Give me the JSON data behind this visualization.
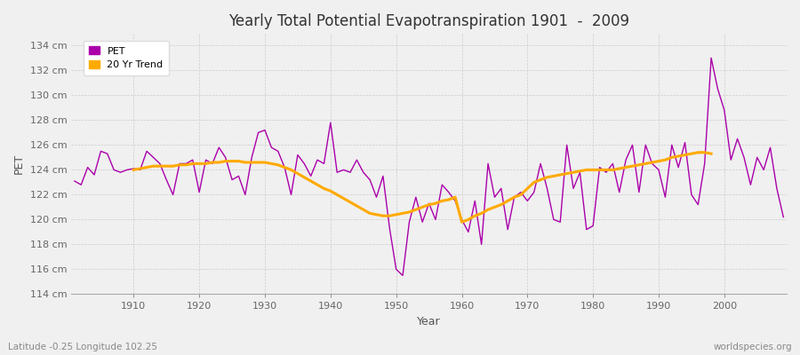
{
  "title": "Yearly Total Potential Evapotranspiration 1901  -  2009",
  "xlabel": "Year",
  "ylabel": "PET",
  "footnote_left": "Latitude -0.25 Longitude 102.25",
  "footnote_right": "worldspecies.org",
  "ylim": [
    114,
    135
  ],
  "yticks": [
    114,
    116,
    118,
    120,
    122,
    124,
    126,
    128,
    130,
    132,
    134
  ],
  "ytick_labels": [
    "114 cm",
    "116 cm",
    "118 cm",
    "120 cm",
    "122 cm",
    "124 cm",
    "126 cm",
    "128 cm",
    "130 cm",
    "132 cm",
    "134 cm"
  ],
  "xlim": [
    1901,
    2009
  ],
  "xticks": [
    1910,
    1920,
    1930,
    1940,
    1950,
    1960,
    1970,
    1980,
    1990,
    2000
  ],
  "pet_color": "#aa00aa",
  "trend_color": "#ffaa00",
  "fig_bg_color": "#f0f0f0",
  "plot_bg_color": "#f0f0f0",
  "legend_labels": [
    "PET",
    "20 Yr Trend"
  ],
  "years": [
    1901,
    1902,
    1903,
    1904,
    1905,
    1906,
    1907,
    1908,
    1909,
    1910,
    1911,
    1912,
    1913,
    1914,
    1915,
    1916,
    1917,
    1918,
    1919,
    1920,
    1921,
    1922,
    1923,
    1924,
    1925,
    1926,
    1927,
    1928,
    1929,
    1930,
    1931,
    1932,
    1933,
    1934,
    1935,
    1936,
    1937,
    1938,
    1939,
    1940,
    1941,
    1942,
    1943,
    1944,
    1945,
    1946,
    1947,
    1948,
    1949,
    1950,
    1951,
    1952,
    1953,
    1954,
    1955,
    1956,
    1957,
    1958,
    1959,
    1960,
    1961,
    1962,
    1963,
    1964,
    1965,
    1966,
    1967,
    1968,
    1969,
    1970,
    1971,
    1972,
    1973,
    1974,
    1975,
    1976,
    1977,
    1978,
    1979,
    1980,
    1981,
    1982,
    1983,
    1984,
    1985,
    1986,
    1987,
    1988,
    1989,
    1990,
    1991,
    1992,
    1993,
    1994,
    1995,
    1996,
    1997,
    1998,
    1999,
    2000,
    2001,
    2002,
    2003,
    2004,
    2005,
    2006,
    2007,
    2008,
    2009
  ],
  "pet_values": [
    123.1,
    122.8,
    124.2,
    123.6,
    125.5,
    125.3,
    124.0,
    123.8,
    124.0,
    124.1,
    124.0,
    125.5,
    125.0,
    124.5,
    123.2,
    122.0,
    124.5,
    124.5,
    124.8,
    122.2,
    124.8,
    124.5,
    125.8,
    125.0,
    123.2,
    123.5,
    122.0,
    125.0,
    127.0,
    127.2,
    125.8,
    125.5,
    124.2,
    122.0,
    125.2,
    124.5,
    123.5,
    124.8,
    124.5,
    127.8,
    123.8,
    124.0,
    123.8,
    124.8,
    123.8,
    123.2,
    121.8,
    123.5,
    119.3,
    116.0,
    115.5,
    119.8,
    121.8,
    119.8,
    121.3,
    120.0,
    122.8,
    122.2,
    121.5,
    120.0,
    119.0,
    121.5,
    118.0,
    124.5,
    121.8,
    122.5,
    119.2,
    121.8,
    122.2,
    121.5,
    122.2,
    124.5,
    122.5,
    120.0,
    119.8,
    126.0,
    122.5,
    123.8,
    119.2,
    119.5,
    124.2,
    123.8,
    124.5,
    122.2,
    124.8,
    126.0,
    122.2,
    126.0,
    124.5,
    124.0,
    121.8,
    126.0,
    124.2,
    126.2,
    122.0,
    121.2,
    124.5,
    133.0,
    130.5,
    128.8,
    124.8,
    126.5,
    125.0,
    122.8,
    125.0,
    124.0,
    125.8,
    122.5,
    120.2
  ],
  "trend_values": [
    null,
    null,
    null,
    null,
    null,
    null,
    null,
    null,
    null,
    124.0,
    124.1,
    124.2,
    124.3,
    124.3,
    124.3,
    124.3,
    124.4,
    124.4,
    124.5,
    124.5,
    124.5,
    124.6,
    124.6,
    124.7,
    124.7,
    124.7,
    124.6,
    124.6,
    124.6,
    124.6,
    124.5,
    124.4,
    124.2,
    124.0,
    123.7,
    123.4,
    123.1,
    122.8,
    122.5,
    122.3,
    122.0,
    121.7,
    121.4,
    121.1,
    120.8,
    120.5,
    120.4,
    120.3,
    120.3,
    120.4,
    120.5,
    120.6,
    120.8,
    121.0,
    121.2,
    121.3,
    121.5,
    121.6,
    121.8,
    119.8,
    120.0,
    120.3,
    120.5,
    120.8,
    121.0,
    121.2,
    121.5,
    121.8,
    122.0,
    122.5,
    123.0,
    123.2,
    123.4,
    123.5,
    123.6,
    123.7,
    123.8,
    123.9,
    124.0,
    124.0,
    124.0,
    124.0,
    124.0,
    124.1,
    124.2,
    124.3,
    124.4,
    124.5,
    124.6,
    124.7,
    124.8,
    125.0,
    125.1,
    125.2,
    125.3,
    125.4,
    125.4,
    125.3,
    null,
    null,
    null,
    null,
    null,
    null,
    null,
    null,
    null
  ]
}
